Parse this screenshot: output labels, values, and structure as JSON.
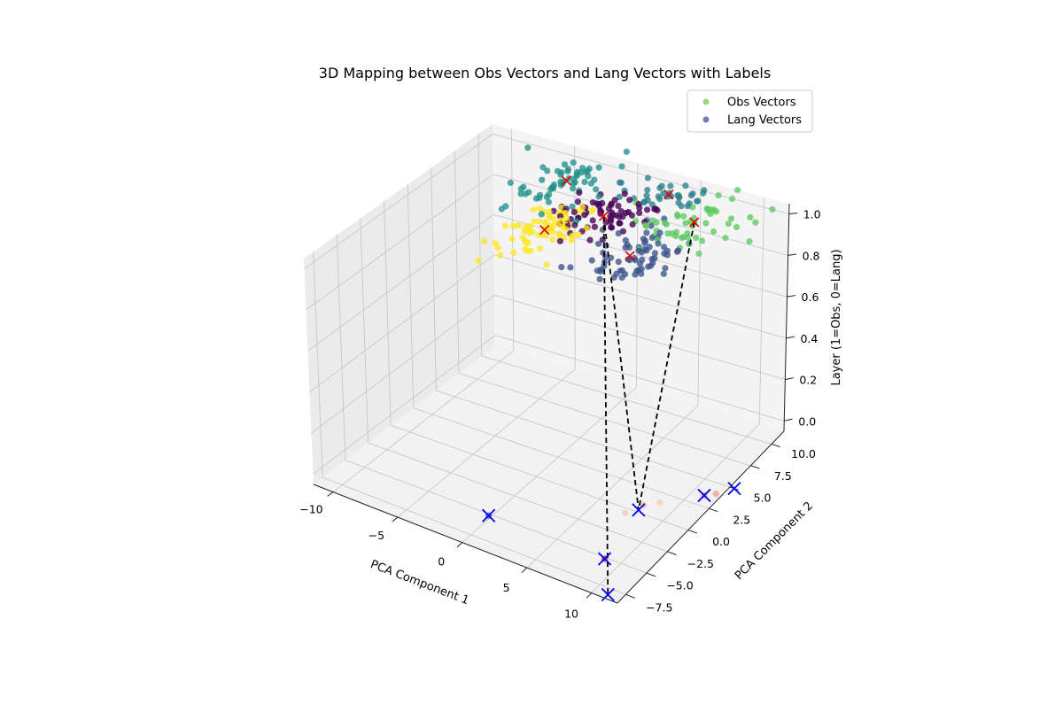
{
  "chart_data": {
    "type": "scatter",
    "projection": "3d",
    "title": "3D Mapping between Obs Vectors and Lang Vectors with Labels",
    "xlabel": "PCA Component 1",
    "ylabel": "PCA Component 2",
    "zlabel": "Layer (1=Obs, 0=Lang)",
    "xlim": [
      -11.5,
      12
    ],
    "ylim": [
      -8.5,
      11.5
    ],
    "zlim": [
      -0.05,
      1.05
    ],
    "xticks": [
      -10,
      -5,
      0,
      5,
      10
    ],
    "xtick_labels": [
      "−10",
      "−5",
      "0",
      "5",
      "10"
    ],
    "yticks": [
      -7.5,
      -5,
      -2.5,
      0,
      2.5,
      5,
      7.5,
      10
    ],
    "ytick_labels": [
      "−7.5",
      "−5.0",
      "−2.5",
      "0.0",
      "2.5",
      "5.0",
      "7.5",
      "10.0"
    ],
    "zticks": [
      0,
      0.2,
      0.4,
      0.6,
      0.8,
      1.0
    ],
    "ztick_labels": [
      "0.0",
      "0.2",
      "0.4",
      "0.6",
      "0.8",
      "1.0"
    ],
    "grid": true,
    "legend": {
      "placement": "top-right",
      "entries": [
        {
          "label": "Obs Vectors",
          "color": "#7ad151"
        },
        {
          "label": "Lang Vectors",
          "color": "#4c5aa8"
        }
      ]
    },
    "cluster_colors": [
      "#440154",
      "#3b528b",
      "#21918c",
      "#5ec962",
      "#fde725",
      "#2c7f8e"
    ],
    "obs_clusters": [
      {
        "cluster": 0,
        "center": [
          1.5,
          5.5,
          1
        ],
        "spread": [
          1.6,
          1.6
        ],
        "count": 70
      },
      {
        "cluster": 1,
        "center": [
          6.2,
          1.5,
          1
        ],
        "spread": [
          1.6,
          2.2
        ],
        "count": 70
      },
      {
        "cluster": 2,
        "center": [
          -3.5,
          8.5,
          1
        ],
        "spread": [
          1.4,
          2.2
        ],
        "count": 60
      },
      {
        "cluster": 3,
        "center": [
          7.2,
          7.5,
          1
        ],
        "spread": [
          1.7,
          2.3
        ],
        "count": 55
      },
      {
        "cluster": 4,
        "center": [
          -0.8,
          2.2,
          1
        ],
        "spread": [
          1.3,
          1.6
        ],
        "count": 75
      },
      {
        "cluster": 5,
        "center": [
          3.5,
          10.0,
          1
        ],
        "spread": [
          1.8,
          1.5
        ],
        "count": 35
      }
    ],
    "obs_centers": [
      [
        1.5,
        5.5,
        1
      ],
      [
        6.2,
        1.5,
        1
      ],
      [
        -3.5,
        8.5,
        1
      ],
      [
        7.2,
        7.5,
        1
      ],
      [
        -0.8,
        2.2,
        1
      ],
      [
        3.5,
        10.0,
        1
      ]
    ],
    "lang_points": [
      {
        "x": 0.5,
        "y": -6.2,
        "z": 0,
        "color": "#4c5aa8"
      },
      {
        "x": 9.5,
        "y": -6.2,
        "z": 0,
        "color": "#c0392b"
      },
      {
        "x": 8.6,
        "y": -0.2,
        "z": 0,
        "color": "#f0b8a0"
      },
      {
        "x": 8.0,
        "y": -1.5,
        "z": 0,
        "color": "#f3c7b0"
      },
      {
        "x": 9.4,
        "y": 0.5,
        "z": 0,
        "color": "#f6d0b8"
      },
      {
        "x": 11.6,
        "y": 2.5,
        "z": 0,
        "color": "#f0a088"
      },
      {
        "x": 12.2,
        "y": 3.0,
        "z": 0,
        "color": "#eca089"
      }
    ],
    "lang_centers": [
      [
        0.5,
        -6.2,
        0
      ],
      [
        9.5,
        -6.2,
        0
      ],
      [
        8.6,
        -0.8,
        0
      ],
      [
        11.6,
        2.5,
        0
      ],
      [
        13.0,
        4.0,
        0
      ],
      [
        11.7,
        -9.2,
        0
      ]
    ],
    "mapping_lines": [
      {
        "from": [
          1.5,
          5.5,
          1
        ],
        "to": [
          8.6,
          -0.8,
          0
        ]
      },
      {
        "from": [
          7.2,
          7.5,
          1
        ],
        "to": [
          8.6,
          -0.8,
          0
        ]
      },
      {
        "from": [
          1.5,
          5.5,
          1
        ],
        "to": [
          11.7,
          -9.2,
          0
        ]
      }
    ]
  }
}
